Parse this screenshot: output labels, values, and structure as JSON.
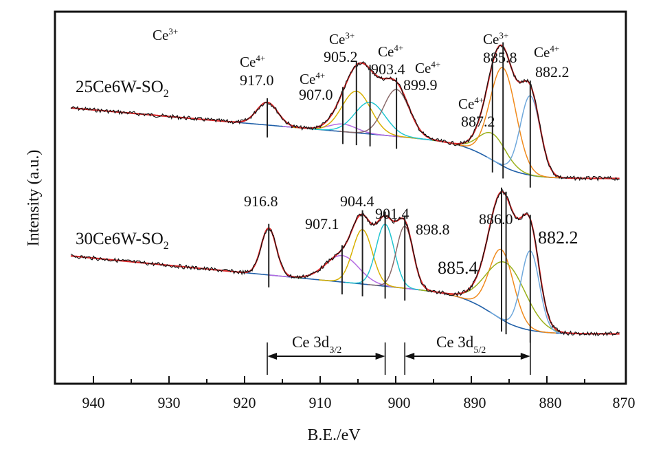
{
  "chart_data": {
    "type": "line",
    "title": "",
    "xlabel": "B.E./eV",
    "ylabel": "Intensity (a.u.)",
    "xlim": [
      945,
      870
    ],
    "x_reversed": true,
    "x_ticks": [
      940,
      930,
      920,
      910,
      900,
      890,
      880,
      870
    ],
    "x_tick_labels": [
      "940",
      "930",
      "920",
      "910",
      "900",
      "890",
      "880",
      "870"
    ],
    "y_ticks": [],
    "grid": false,
    "legend": "none",
    "spectra": [
      {
        "name": "25Ce6W-SO2",
        "label_main": "25Ce6W-SO",
        "label_sub": "2",
        "offset": 1.0,
        "baseline": {
          "start": 0.0,
          "end": -0.95,
          "step_center": 887
        },
        "peaks": [
          {
            "center": 917.0,
            "height": 0.3,
            "width": 1.4,
            "state": "Ce4+",
            "label": "917.0",
            "color": "#222222"
          },
          {
            "center": 907.0,
            "height": 0.1,
            "width": 1.8,
            "state": "Ce4+",
            "label": "907.0",
            "color": "#b36ae2"
          },
          {
            "center": 905.2,
            "height": 0.55,
            "width": 1.9,
            "state": "Ce3+",
            "label": "905.2",
            "color": "#d8b000"
          },
          {
            "center": 903.4,
            "height": 0.42,
            "width": 2.0,
            "state": "Ce4+",
            "label": "903.4",
            "color": "#22c5d0"
          },
          {
            "center": 899.9,
            "height": 0.62,
            "width": 1.7,
            "state": "Ce4+",
            "label": "899.9",
            "color": "#8a6a6a"
          },
          {
            "center": 887.2,
            "height": 0.35,
            "width": 1.8,
            "state": "Ce4+",
            "label": "887.2",
            "color": "#9ab01a"
          },
          {
            "center": 885.8,
            "height": 1.3,
            "width": 1.7,
            "state": "Ce3+",
            "label": "885.8",
            "color": "#f08a1c"
          },
          {
            "center": 882.2,
            "height": 1.05,
            "width": 1.3,
            "state": "Ce4+",
            "label": "882.2",
            "color": "#6fa8dc"
          }
        ]
      },
      {
        "name": "30Ce6W-SO2",
        "label_main": "30Ce6W-SO",
        "label_sub": "2",
        "offset": 0.0,
        "baseline": {
          "start": 0.0,
          "end": -1.05,
          "step_center": 887
        },
        "peaks": [
          {
            "center": 916.8,
            "height": 0.62,
            "width": 1.0,
            "label": "916.8",
            "color": "#2a6a2a"
          },
          {
            "center": 907.1,
            "height": 0.35,
            "width": 2.2,
            "label": "907.1",
            "color": "#b36ae2"
          },
          {
            "center": 904.4,
            "height": 0.72,
            "width": 1.3,
            "label": "904.4",
            "color": "#d8b000"
          },
          {
            "center": 901.4,
            "height": 0.82,
            "width": 1.2,
            "label": "901.4",
            "color": "#22c5d0"
          },
          {
            "center": 898.8,
            "height": 0.82,
            "width": 1.1,
            "label": "898.8",
            "color": "#8a6a6a"
          },
          {
            "center": 886.0,
            "height": 0.92,
            "width": 1.6,
            "label": "886.0",
            "color": "#f08a1c"
          },
          {
            "center": 885.4,
            "height": 0.78,
            "width": 2.6,
            "label": "885.4",
            "color": "#9ab01a"
          },
          {
            "center": 882.2,
            "height": 1.05,
            "width": 1.2,
            "label": "882.2",
            "color": "#6fa8dc"
          }
        ]
      }
    ],
    "state_annotations": [
      {
        "text": "Ce",
        "sup": "3+"
      },
      {
        "text": "Ce",
        "sup": "4+"
      },
      {
        "text": "Ce",
        "sup": "4+"
      },
      {
        "text": "Ce",
        "sup": "3+"
      },
      {
        "text": "Ce",
        "sup": "4+"
      },
      {
        "text": "Ce",
        "sup": "4+"
      },
      {
        "text": "Ce",
        "sup": "4+"
      },
      {
        "text": "Ce",
        "sup": "3+"
      },
      {
        "text": "Ce",
        "sup": "4+"
      }
    ],
    "regions": [
      {
        "label": "Ce 3d",
        "sub": "3/2",
        "from": 917.0,
        "to": 901.4
      },
      {
        "label": "Ce 3d",
        "sub": "5/2",
        "from": 898.8,
        "to": 882.2
      }
    ],
    "colors": {
      "raw": "#111111",
      "envelope": "#d62728",
      "background": "#1f5fa8",
      "marker": "#222222"
    }
  }
}
